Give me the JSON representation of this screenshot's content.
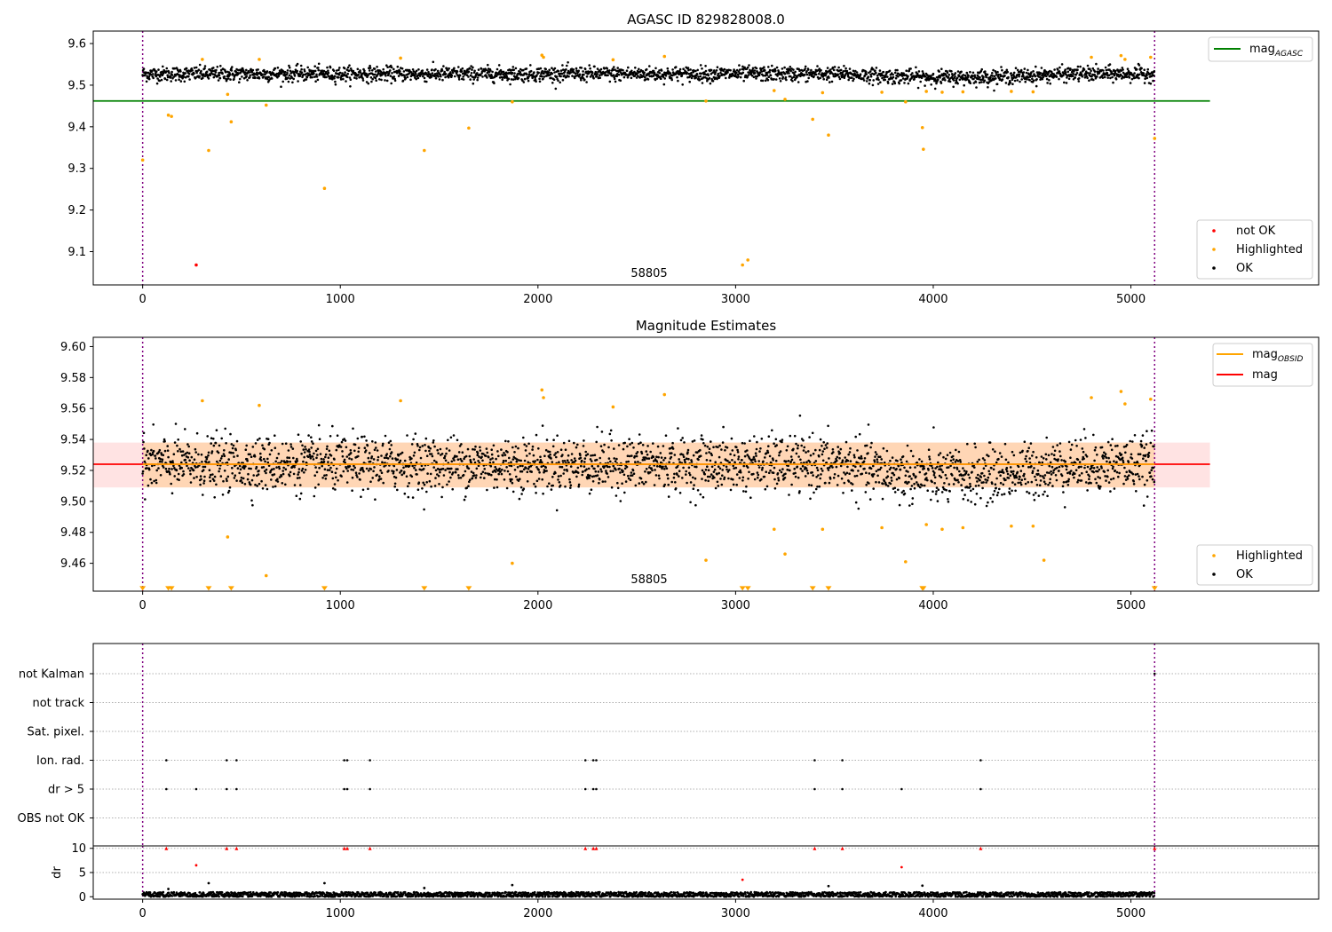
{
  "chart_data": [
    {
      "type": "scatter",
      "title": "AGASC ID 829828008.0",
      "xlim": [
        -250,
        5950
      ],
      "ylim": [
        9.02,
        9.63
      ],
      "x_ticks": [
        0,
        1000,
        2000,
        3000,
        4000,
        5000
      ],
      "y_ticks": [
        9.1,
        9.2,
        9.3,
        9.4,
        9.5,
        9.6
      ],
      "vlines": [
        0,
        5120
      ],
      "annotation": {
        "text": "58805",
        "x": 2550,
        "y": 9.04
      },
      "hlines": [
        {
          "name": "mag_AGASC",
          "y": 9.462,
          "x_range": [
            -250,
            5400
          ],
          "color": "#008000"
        }
      ],
      "ok_series": {
        "name": "OK",
        "color": "#000000",
        "n": 5120,
        "x_range": [
          0,
          5120
        ],
        "y_center": 9.527,
        "y_scatter": 0.011,
        "y_dip": {
          "x_start": 3500,
          "x_end": 4700,
          "depth": 0.008
        }
      },
      "series": [
        {
          "name": "not OK",
          "color": "#ff0000",
          "points": [
            [
              271,
              9.068
            ]
          ]
        },
        {
          "name": "Highlighted",
          "color": "#ffa500",
          "points": [
            [
              0,
              9.32
            ],
            [
              130,
              9.428
            ],
            [
              146,
              9.425
            ],
            [
              302,
              9.562
            ],
            [
              334,
              9.343
            ],
            [
              430,
              9.478
            ],
            [
              448,
              9.412
            ],
            [
              590,
              9.562
            ],
            [
              625,
              9.452
            ],
            [
              920,
              9.252
            ],
            [
              1305,
              9.565
            ],
            [
              1425,
              9.343
            ],
            [
              1650,
              9.397
            ],
            [
              1870,
              9.46
            ],
            [
              2020,
              9.572
            ],
            [
              2028,
              9.567
            ],
            [
              2380,
              9.561
            ],
            [
              2640,
              9.569
            ],
            [
              2850,
              9.462
            ],
            [
              3035,
              9.068
            ],
            [
              3062,
              9.08
            ],
            [
              3195,
              9.487
            ],
            [
              3250,
              9.466
            ],
            [
              3390,
              9.418
            ],
            [
              3440,
              9.482
            ],
            [
              3470,
              9.38
            ],
            [
              3740,
              9.483
            ],
            [
              3860,
              9.46
            ],
            [
              3945,
              9.398
            ],
            [
              3950,
              9.346
            ],
            [
              3965,
              9.485
            ],
            [
              4045,
              9.483
            ],
            [
              4150,
              9.484
            ],
            [
              4395,
              9.485
            ],
            [
              4505,
              9.484
            ],
            [
              4800,
              9.567
            ],
            [
              4950,
              9.571
            ],
            [
              4970,
              9.562
            ],
            [
              5100,
              9.567
            ],
            [
              5120,
              9.372
            ]
          ]
        }
      ],
      "legends": [
        {
          "position": "upper-right",
          "entries": [
            {
              "label_main": "mag",
              "label_sub": "AGASC",
              "kind": "line",
              "color": "#008000"
            }
          ]
        },
        {
          "position": "lower-right",
          "entries": [
            {
              "label": "not OK",
              "kind": "dot",
              "color": "#ff0000"
            },
            {
              "label": "Highlighted",
              "kind": "dot",
              "color": "#ffa500"
            },
            {
              "label": "OK",
              "kind": "dot",
              "color": "#000000"
            }
          ]
        }
      ]
    },
    {
      "type": "scatter",
      "title": "Magnitude Estimates",
      "xlim": [
        -250,
        5950
      ],
      "ylim": [
        9.442,
        9.606
      ],
      "x_ticks": [
        0,
        1000,
        2000,
        3000,
        4000,
        5000
      ],
      "y_ticks": [
        9.46,
        9.48,
        9.5,
        9.52,
        9.54,
        9.56,
        9.58,
        9.6
      ],
      "vlines": [
        0,
        5120
      ],
      "annotation": {
        "text": "58805",
        "x": 2550,
        "y": 9.448
      },
      "bands": [
        {
          "y_range": [
            9.509,
            9.538
          ],
          "x_range": [
            -250,
            5400
          ],
          "color": "#ff0000",
          "opacity": 0.11
        },
        {
          "y_range": [
            9.509,
            9.538
          ],
          "x_range": [
            0,
            5120
          ],
          "color": "#ffa500",
          "opacity": 0.2
        }
      ],
      "hlines": [
        {
          "name": "mag",
          "y": 9.524,
          "x_range": [
            -250,
            5400
          ],
          "color": "#ff0000"
        },
        {
          "name": "mag_OBSID",
          "y": 9.524,
          "x_range": [
            0,
            5120
          ],
          "color": "#ffa500"
        }
      ],
      "ok_series": {
        "name": "OK",
        "color": "#000000",
        "n": 5120,
        "x_range": [
          0,
          5120
        ],
        "y_center": 9.524,
        "y_scatter": 0.011,
        "y_dip": {
          "x_start": 3500,
          "x_end": 4700,
          "depth": 0.008
        }
      },
      "series": [
        {
          "name": "Highlighted",
          "color": "#ffa500",
          "points": [
            [
              302,
              9.565
            ],
            [
              430,
              9.477
            ],
            [
              590,
              9.562
            ],
            [
              625,
              9.452
            ],
            [
              1305,
              9.565
            ],
            [
              1870,
              9.46
            ],
            [
              2020,
              9.572
            ],
            [
              2028,
              9.567
            ],
            [
              2380,
              9.561
            ],
            [
              2640,
              9.569
            ],
            [
              2850,
              9.462
            ],
            [
              3195,
              9.482
            ],
            [
              3250,
              9.466
            ],
            [
              3440,
              9.482
            ],
            [
              3740,
              9.483
            ],
            [
              3860,
              9.461
            ],
            [
              3965,
              9.485
            ],
            [
              4045,
              9.482
            ],
            [
              4150,
              9.483
            ],
            [
              4395,
              9.484
            ],
            [
              4505,
              9.484
            ],
            [
              4560,
              9.462
            ],
            [
              4800,
              9.567
            ],
            [
              4950,
              9.571
            ],
            [
              4970,
              9.563
            ],
            [
              5100,
              9.566
            ]
          ]
        },
        {
          "name": "Highlighted (off-scale)",
          "color": "#ffa500",
          "marker": "triangle-down",
          "y_value": 9.4435,
          "x_values": [
            0,
            130,
            146,
            334,
            448,
            920,
            1425,
            1650,
            3035,
            3062,
            3390,
            3470,
            3945,
            3950,
            5120
          ]
        }
      ],
      "legends": [
        {
          "position": "upper-right",
          "entries": [
            {
              "label_main": "mag",
              "label_sub": "OBSID",
              "kind": "line",
              "color": "#ffa500"
            },
            {
              "label": "mag",
              "kind": "line",
              "color": "#ff0000"
            }
          ]
        },
        {
          "position": "lower-right",
          "entries": [
            {
              "label": "Highlighted",
              "kind": "dot",
              "color": "#ffa500"
            },
            {
              "label": "OK",
              "kind": "dot",
              "color": "#000000"
            }
          ]
        }
      ]
    },
    {
      "type": "scatter",
      "title": "",
      "xlim": [
        -250,
        5950
      ],
      "flag_rows": [
        "not Kalman",
        "not track",
        "Sat. pixel.",
        "Ion. rad.",
        "dr > 5",
        "OBS not OK"
      ],
      "vlines": [
        0,
        5120
      ],
      "flags": {
        "Ion. rad.": [
          120,
          425,
          475,
          1020,
          1035,
          1150,
          2240,
          2280,
          2295,
          3400,
          3540,
          4240
        ],
        "dr > 5": [
          120,
          271,
          425,
          475,
          1020,
          1035,
          1150,
          2240,
          2280,
          2295,
          3400,
          3540,
          3840,
          4240
        ],
        "not Kalman": [
          5120
        ]
      }
    },
    {
      "type": "scatter",
      "title": "",
      "xlim": [
        -250,
        5950
      ],
      "ylim": [
        -0.5,
        10.5
      ],
      "ylabel": "dr",
      "x_ticks": [
        0,
        1000,
        2000,
        3000,
        4000,
        5000
      ],
      "y_ticks": [
        0,
        5,
        10
      ],
      "vlines": [
        0,
        5120
      ],
      "ok_series": {
        "name": "dr",
        "color": "#000000",
        "n": 5120,
        "x_range": [
          0,
          5120
        ],
        "y_center": 0.45,
        "y_scatter": 0.25
      },
      "series": [
        {
          "name": "dr capped",
          "color": "#ff0000",
          "marker": "triangle-up",
          "y_value": 10,
          "x_values": [
            120,
            425,
            475,
            1020,
            1035,
            1150,
            2240,
            2280,
            2295,
            3400,
            3540,
            4240,
            5120
          ]
        },
        {
          "name": "dr > 5",
          "color": "#ff0000",
          "points": [
            [
              271,
              6.5
            ],
            [
              3840,
              6.1
            ],
            [
              3035,
              3.5
            ]
          ]
        },
        {
          "name": "dr outliers",
          "color": "#000000",
          "points": [
            [
              334,
              2.8
            ],
            [
              920,
              2.8
            ],
            [
              1870,
              2.4
            ],
            [
              3945,
              2.3
            ],
            [
              3470,
              2.2
            ],
            [
              130,
              1.6
            ],
            [
              1425,
              1.8
            ]
          ]
        }
      ]
    }
  ]
}
